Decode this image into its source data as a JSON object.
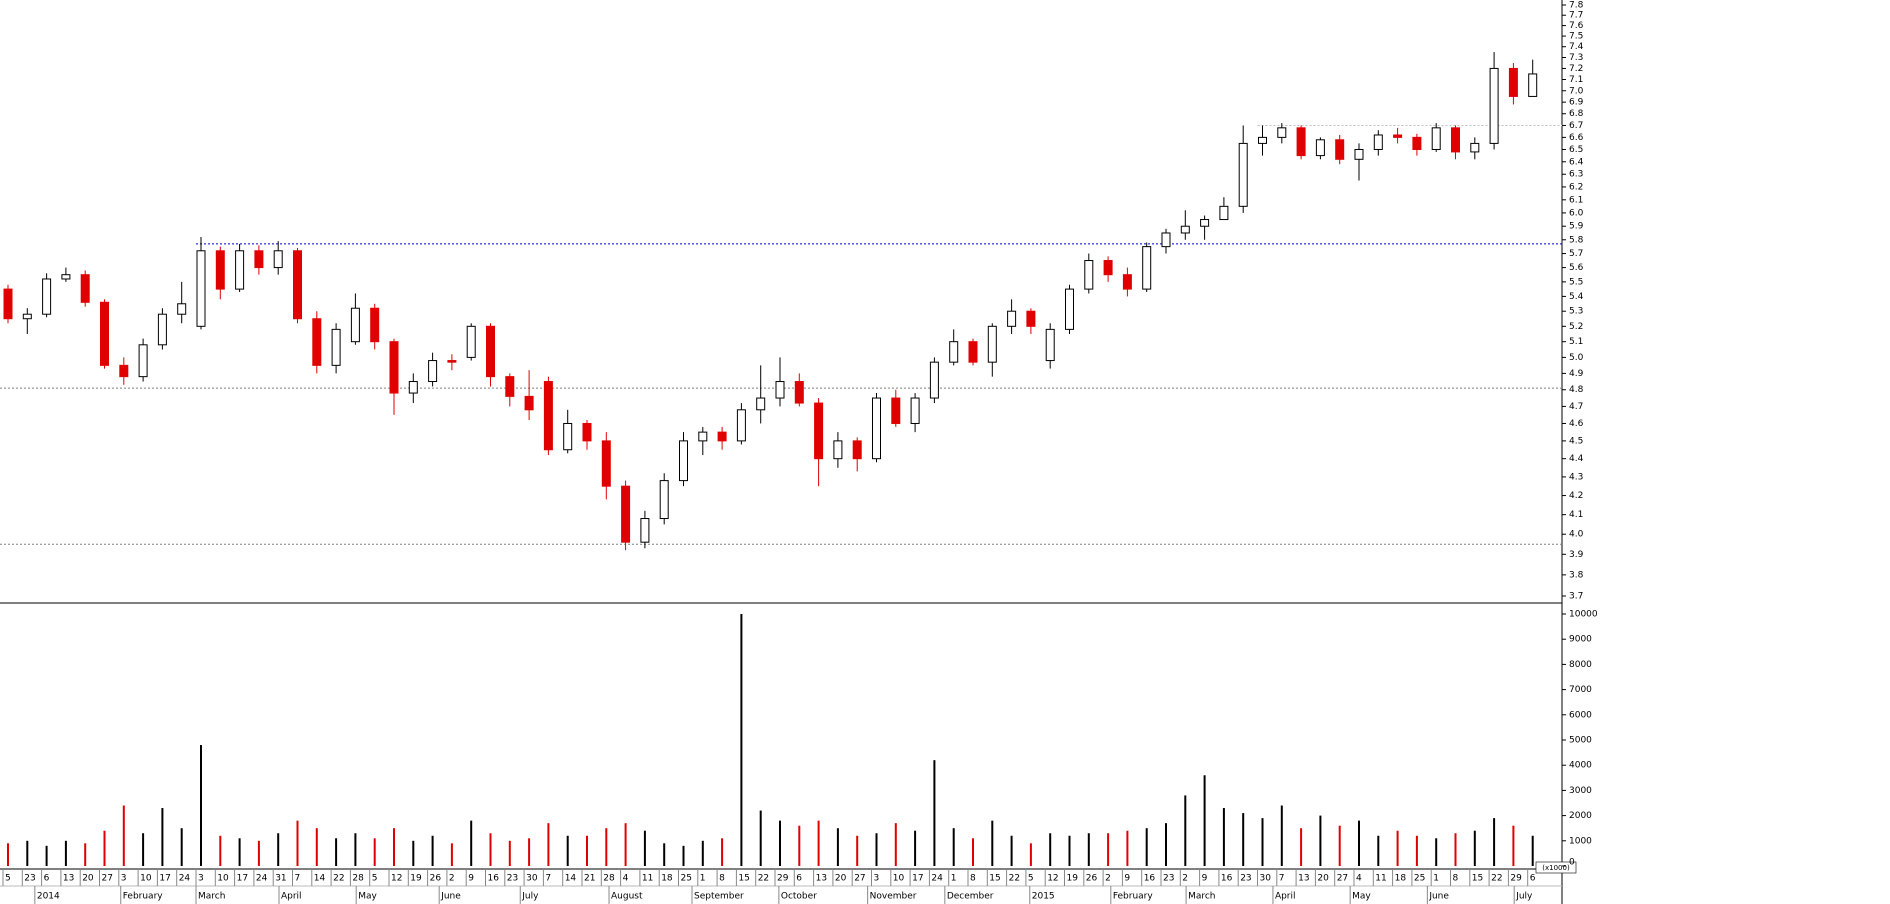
{
  "chart_data": {
    "type": "candlestick",
    "log_scale": true,
    "up_color": "#000000",
    "down_color": "#e00000",
    "categories": [
      "5",
      "23",
      "6",
      "13",
      "20",
      "27",
      "3",
      "10",
      "17",
      "24",
      "3",
      "10",
      "17",
      "24",
      "31",
      "7",
      "14",
      "22",
      "28",
      "5",
      "12",
      "19",
      "26",
      "2",
      "9",
      "16",
      "23",
      "30",
      "7",
      "14",
      "21",
      "28",
      "4",
      "11",
      "18",
      "25",
      "1",
      "8",
      "15",
      "22",
      "29",
      "6",
      "13",
      "20",
      "27",
      "3",
      "10",
      "17",
      "24",
      "1",
      "8",
      "15",
      "22",
      "5",
      "12",
      "19",
      "26",
      "2",
      "9",
      "16",
      "23",
      "2",
      "9",
      "16",
      "23",
      "30",
      "7",
      "13",
      "20",
      "27",
      "4",
      "11",
      "18",
      "25",
      "1",
      "8",
      "15",
      "22",
      "29",
      "6"
    ],
    "months": [
      {
        "value": 1.65,
        "label": "2014"
      },
      {
        "value": 6.1,
        "label": "February"
      },
      {
        "value": 10.0,
        "label": "March"
      },
      {
        "value": 14.3,
        "label": "April"
      },
      {
        "value": 18.3,
        "label": "May"
      },
      {
        "value": 22.6,
        "label": "June"
      },
      {
        "value": 26.8,
        "label": "July"
      },
      {
        "value": 31.4,
        "label": "August"
      },
      {
        "value": 35.7,
        "label": "September"
      },
      {
        "value": 40.2,
        "label": "October"
      },
      {
        "value": 44.8,
        "label": "November"
      },
      {
        "value": 48.8,
        "label": "December"
      },
      {
        "value": 53.2,
        "label": "2015"
      },
      {
        "value": 57.4,
        "label": "February"
      },
      {
        "value": 61.3,
        "label": "March"
      },
      {
        "value": 65.8,
        "label": "April"
      },
      {
        "value": 69.8,
        "label": "May"
      },
      {
        "value": 73.8,
        "label": "June"
      },
      {
        "value": 78.3,
        "label": "July"
      }
    ],
    "open": [
      5.45,
      5.25,
      5.28,
      5.52,
      5.55,
      5.36,
      4.95,
      4.88,
      5.08,
      5.28,
      5.2,
      5.72,
      5.45,
      5.72,
      5.6,
      5.72,
      5.25,
      4.95,
      5.1,
      5.32,
      5.1,
      4.78,
      4.85,
      4.98,
      5.0,
      5.2,
      4.88,
      4.76,
      4.85,
      4.45,
      4.6,
      4.5,
      4.25,
      3.96,
      4.08,
      4.28,
      4.5,
      4.55,
      4.5,
      4.68,
      4.75,
      4.85,
      4.72,
      4.4,
      4.5,
      4.4,
      4.75,
      4.6,
      4.75,
      4.97,
      5.1,
      4.97,
      5.2,
      5.3,
      4.98,
      5.18,
      5.45,
      5.65,
      5.55,
      5.45,
      5.75,
      5.85,
      5.9,
      5.95,
      6.05,
      6.55,
      6.6,
      6.68,
      6.45,
      6.58,
      6.42,
      6.5,
      6.62,
      6.6,
      6.5,
      6.68,
      6.48,
      6.55,
      7.2,
      6.95
    ],
    "high": [
      5.48,
      5.32,
      5.56,
      5.6,
      5.58,
      5.38,
      5.0,
      5.12,
      5.32,
      5.5,
      5.82,
      5.75,
      5.77,
      5.76,
      5.79,
      5.74,
      5.3,
      5.22,
      5.42,
      5.35,
      5.12,
      4.9,
      5.03,
      5.02,
      5.22,
      5.22,
      4.9,
      4.92,
      4.88,
      4.68,
      4.62,
      4.55,
      4.28,
      4.12,
      4.32,
      4.55,
      4.58,
      4.58,
      4.72,
      4.95,
      5.0,
      4.9,
      4.75,
      4.55,
      4.52,
      4.78,
      4.8,
      4.78,
      5.0,
      5.18,
      5.12,
      5.22,
      5.38,
      5.32,
      5.22,
      5.48,
      5.7,
      5.68,
      5.6,
      5.78,
      5.88,
      6.02,
      5.98,
      6.12,
      6.7,
      6.7,
      6.72,
      6.7,
      6.6,
      6.62,
      6.55,
      6.66,
      6.68,
      6.63,
      6.72,
      6.7,
      6.6,
      7.35,
      7.25,
      7.28
    ],
    "low": [
      5.22,
      5.15,
      5.26,
      5.5,
      5.33,
      4.93,
      4.83,
      4.85,
      5.05,
      5.22,
      5.18,
      5.38,
      5.43,
      5.55,
      5.55,
      5.22,
      4.9,
      4.9,
      5.08,
      5.05,
      4.65,
      4.72,
      4.82,
      4.92,
      4.98,
      4.82,
      4.7,
      4.62,
      4.42,
      4.43,
      4.45,
      4.18,
      3.92,
      3.93,
      4.05,
      4.25,
      4.42,
      4.45,
      4.48,
      4.6,
      4.7,
      4.7,
      4.25,
      4.35,
      4.33,
      4.38,
      4.58,
      4.55,
      4.72,
      4.95,
      4.95,
      4.88,
      5.15,
      5.15,
      4.93,
      5.15,
      5.42,
      5.5,
      5.4,
      5.43,
      5.7,
      5.8,
      5.8,
      5.95,
      6.0,
      6.45,
      6.55,
      6.42,
      6.42,
      6.38,
      6.25,
      6.45,
      6.55,
      6.45,
      6.48,
      6.42,
      6.42,
      6.5,
      6.88,
      6.95
    ],
    "close": [
      5.25,
      5.28,
      5.52,
      5.55,
      5.36,
      4.95,
      4.88,
      5.08,
      5.28,
      5.35,
      5.72,
      5.45,
      5.72,
      5.6,
      5.72,
      5.25,
      4.95,
      5.18,
      5.32,
      5.1,
      4.78,
      4.85,
      4.98,
      4.97,
      5.2,
      4.88,
      4.76,
      4.68,
      4.45,
      4.6,
      4.5,
      4.25,
      3.96,
      4.08,
      4.28,
      4.5,
      4.55,
      4.5,
      4.68,
      4.75,
      4.85,
      4.72,
      4.4,
      4.5,
      4.4,
      4.75,
      4.6,
      4.75,
      4.97,
      5.1,
      4.97,
      5.2,
      5.3,
      5.2,
      5.18,
      5.45,
      5.65,
      5.55,
      5.45,
      5.75,
      5.85,
      5.9,
      5.95,
      6.05,
      6.55,
      6.6,
      6.68,
      6.45,
      6.58,
      6.42,
      6.5,
      6.62,
      6.6,
      6.5,
      6.68,
      6.48,
      6.55,
      7.2,
      6.95,
      7.15
    ],
    "ylim": [
      3.7,
      7.8
    ],
    "yticks": [
      3.7,
      3.8,
      3.9,
      {
        "value": 4,
        "label": "4.0"
      },
      4.1,
      4.2,
      4.3,
      4.4,
      4.5,
      4.6,
      4.7,
      4.8,
      4.9,
      {
        "value": 5,
        "label": "5.0"
      },
      5.1,
      5.2,
      5.3,
      5.4,
      5.5,
      5.6,
      5.7,
      5.8,
      5.9,
      {
        "value": 6,
        "label": "6.0"
      },
      6.1,
      6.2,
      6.3,
      6.4,
      6.5,
      6.6,
      6.7,
      6.8,
      6.9,
      {
        "value": 7,
        "label": "7.0"
      },
      7.1,
      7.2,
      7.3,
      7.4,
      7.5,
      7.6,
      7.7,
      7.8
    ],
    "hlines": [
      {
        "value": 5.77,
        "color": "#0000c0",
        "start": 10
      },
      {
        "value": 4.81,
        "color": "#808080",
        "start": 0
      },
      {
        "value": 3.95,
        "color": "#808080",
        "start": 0
      },
      {
        "value": 6.7,
        "color": "#c0c0c0",
        "start": 65
      }
    ],
    "volume": {
      "unit": "(x1000)",
      "values": [
        900,
        1000,
        800,
        1000,
        900,
        1400,
        2400,
        1300,
        2300,
        1500,
        4800,
        1200,
        1100,
        1000,
        1300,
        1800,
        1500,
        1100,
        1300,
        1100,
        1500,
        1000,
        1200,
        900,
        1800,
        1300,
        1000,
        1100,
        1700,
        1200,
        1200,
        1500,
        1700,
        1400,
        900,
        800,
        1000,
        1100,
        10000,
        2200,
        1800,
        1600,
        1800,
        1500,
        1200,
        1300,
        1700,
        1400,
        4200,
        1500,
        1100,
        1800,
        1200,
        900,
        1300,
        1200,
        1300,
        1300,
        1400,
        1500,
        1700,
        2800,
        3600,
        2300,
        2100,
        1900,
        2400,
        1500,
        2000,
        1600,
        1800,
        1200,
        1400,
        1200,
        1100,
        1300,
        1400,
        1900,
        1600,
        1200
      ],
      "ylim": [
        0,
        10000
      ],
      "yticks": [
        0,
        1000,
        2000,
        3000,
        4000,
        5000,
        6000,
        7000,
        8000,
        9000,
        10000
      ]
    }
  }
}
